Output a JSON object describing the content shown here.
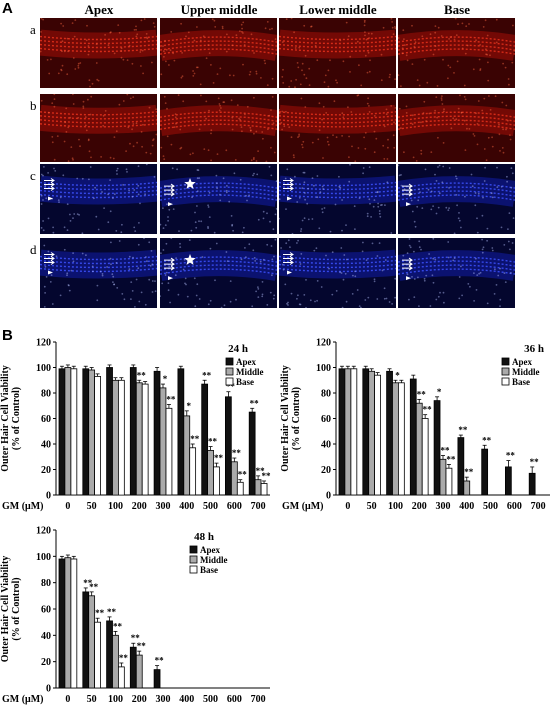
{
  "panel_letters": {
    "a": "A",
    "b": "B"
  },
  "micrograph": {
    "column_headers": [
      "Apex",
      "Upper middle",
      "Lower middle",
      "Base"
    ],
    "row_labels": [
      "a",
      "b",
      "c",
      "d"
    ],
    "row_colors": [
      "red",
      "red",
      "blue",
      "blue"
    ]
  },
  "chart_data": [
    {
      "type": "bar",
      "title": "24 h",
      "xlabel": "GM (μM)",
      "ylabel": "Outer Hair Cell Viability\n(% of Control)",
      "categories": [
        "0",
        "50",
        "100",
        "200",
        "300",
        "400",
        "500",
        "600",
        "700"
      ],
      "ylim": [
        0,
        120
      ],
      "yticks": [
        "0",
        "20",
        "40",
        "60",
        "80",
        "100",
        "120"
      ],
      "legend_position": "top-right",
      "series": [
        {
          "name": "Apex",
          "color": "#111111",
          "values": [
            99,
            99,
            100,
            100,
            97,
            99,
            87,
            77,
            65
          ],
          "errors": [
            2,
            2,
            2,
            2,
            3,
            2,
            3,
            4,
            3
          ],
          "sig": [
            "",
            "",
            "",
            "",
            "",
            "",
            "**",
            "**",
            "**"
          ]
        },
        {
          "name": "Middle",
          "color": "#aaaaaa",
          "values": [
            100,
            98,
            90,
            88,
            84,
            62,
            35,
            26,
            12
          ],
          "errors": [
            2,
            2,
            2,
            2,
            3,
            4,
            3,
            3,
            3
          ],
          "sig": [
            "",
            "",
            "",
            "**",
            "*",
            "*",
            "**",
            "**",
            "**"
          ]
        },
        {
          "name": "Base",
          "color": "#ffffff",
          "values": [
            99,
            93,
            90,
            87,
            68,
            37,
            22,
            10,
            9
          ],
          "errors": [
            2,
            2,
            2,
            2,
            3,
            3,
            3,
            2,
            2
          ],
          "sig": [
            "",
            "",
            "",
            "",
            "**",
            "**",
            "**",
            "**",
            "**"
          ]
        }
      ]
    },
    {
      "type": "bar",
      "title": "36 h",
      "xlabel": "GM (μM)",
      "ylabel": "Outer Hair Cell Viability\n(% of Control)",
      "categories": [
        "0",
        "50",
        "100",
        "200",
        "300",
        "400",
        "500",
        "600",
        "700"
      ],
      "ylim": [
        0,
        120
      ],
      "yticks": [
        "0",
        "20",
        "40",
        "60",
        "80",
        "100",
        "120"
      ],
      "legend_position": "top-right",
      "series": [
        {
          "name": "Apex",
          "color": "#111111",
          "values": [
            99,
            99,
            97,
            91,
            74,
            45,
            36,
            22,
            17
          ],
          "errors": [
            2,
            2,
            2,
            3,
            3,
            2,
            3,
            5,
            5
          ],
          "sig": [
            "",
            "",
            "",
            "",
            "*",
            "**",
            "**",
            "**",
            "**"
          ]
        },
        {
          "name": "Middle",
          "color": "#aaaaaa",
          "values": [
            99,
            97,
            88,
            72,
            28,
            11,
            null,
            null,
            null
          ],
          "errors": [
            2,
            2,
            2,
            3,
            3,
            3,
            0,
            0,
            0
          ],
          "sig": [
            "",
            "",
            "*",
            "**",
            "**",
            "**",
            "",
            "",
            ""
          ]
        },
        {
          "name": "Base",
          "color": "#ffffff",
          "values": [
            99,
            94,
            88,
            60,
            21,
            null,
            null,
            null,
            null
          ],
          "errors": [
            2,
            2,
            2,
            3,
            3,
            0,
            0,
            0,
            0
          ],
          "sig": [
            "",
            "",
            "",
            "**",
            "**",
            "",
            "",
            "",
            ""
          ]
        }
      ]
    },
    {
      "type": "bar",
      "title": "48 h",
      "xlabel": "GM (μM)",
      "ylabel": "Outer Hair Cell Viability\n(% of Control)",
      "categories": [
        "0",
        "50",
        "100",
        "200",
        "300",
        "400",
        "500",
        "600",
        "700"
      ],
      "ylim": [
        0,
        120
      ],
      "yticks": [
        "0",
        "20",
        "40",
        "60",
        "80",
        "100",
        "120"
      ],
      "legend_position": "top-right",
      "series": [
        {
          "name": "Apex",
          "color": "#111111",
          "values": [
            98,
            73,
            51,
            31,
            14,
            null,
            null,
            null,
            null
          ],
          "errors": [
            2,
            3,
            3,
            3,
            3,
            0,
            0,
            0,
            0
          ],
          "sig": [
            "",
            "**",
            "**",
            "**",
            "**",
            "",
            "",
            "",
            ""
          ]
        },
        {
          "name": "Middle",
          "color": "#aaaaaa",
          "values": [
            99,
            70,
            40,
            25,
            null,
            null,
            null,
            null,
            null
          ],
          "errors": [
            2,
            3,
            3,
            3,
            0,
            0,
            0,
            0,
            0
          ],
          "sig": [
            "",
            "**",
            "**",
            "**",
            "",
            "",
            "",
            "",
            ""
          ]
        },
        {
          "name": "Base",
          "color": "#ffffff",
          "values": [
            98,
            50,
            16,
            null,
            null,
            null,
            null,
            null,
            null
          ],
          "errors": [
            2,
            3,
            3,
            0,
            0,
            0,
            0,
            0,
            0
          ],
          "sig": [
            "",
            "**",
            "**",
            "",
            "",
            "",
            "",
            "",
            ""
          ]
        }
      ]
    }
  ]
}
